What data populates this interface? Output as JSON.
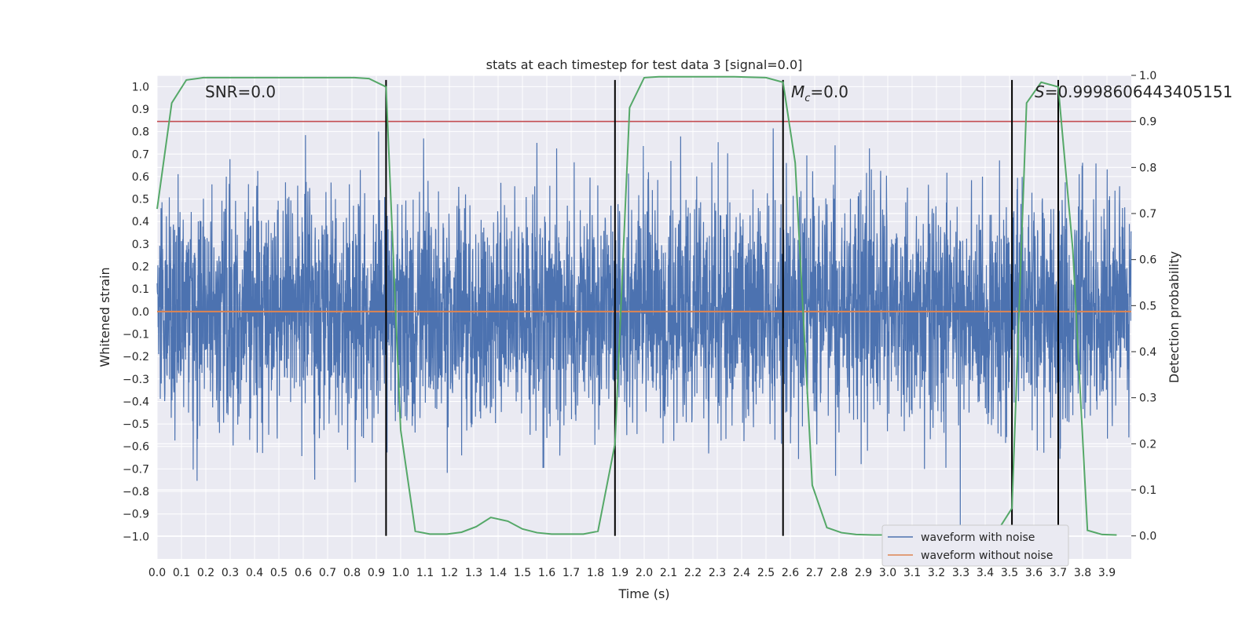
{
  "chart_data": {
    "type": "line",
    "title": "stats at each timestep for test data 3 [signal=0.0]",
    "xlabel": "Time (s)",
    "ylabel": "Whitened strain",
    "y2label": "Detection probability",
    "xlim": [
      0.0,
      4.0
    ],
    "ylim": [
      -1.1,
      1.05
    ],
    "y2lim": [
      -0.05,
      1.0
    ],
    "x_ticks": [
      "0.0",
      "0.1",
      "0.2",
      "0.3",
      "0.4",
      "0.5",
      "0.6",
      "0.7",
      "0.8",
      "0.9",
      "1.0",
      "1.1",
      "1.2",
      "1.3",
      "1.4",
      "1.5",
      "1.6",
      "1.7",
      "1.8",
      "1.9",
      "2.0",
      "2.1",
      "2.2",
      "2.3",
      "2.4",
      "2.5",
      "2.6",
      "2.7",
      "2.8",
      "2.9",
      "3.0",
      "3.1",
      "3.2",
      "3.3",
      "3.4",
      "3.5",
      "3.6",
      "3.7",
      "3.8",
      "3.9"
    ],
    "y_ticks": [
      "1.0",
      "0.9",
      "0.8",
      "0.7",
      "0.6",
      "0.5",
      "0.4",
      "0.3",
      "0.2",
      "0.1",
      "0.0",
      "−0.1",
      "−0.2",
      "−0.3",
      "−0.4",
      "−0.5",
      "−0.6",
      "−0.7",
      "−0.8",
      "−0.9",
      "−1.0"
    ],
    "y2_ticks": [
      "1.0",
      "0.9",
      "0.8",
      "0.7",
      "0.6",
      "0.5",
      "0.4",
      "0.3",
      "0.2",
      "0.1",
      "0.0"
    ],
    "annotations": {
      "snr": "SNR=0.0",
      "mc_symbol": "M",
      "mc_sub": "c",
      "mc_value": "=0.0",
      "s_symbol": "S",
      "s_value": "=0.9998606443405151"
    },
    "threshold_prob": 0.9,
    "vertical_markers": [
      0.94,
      1.88,
      2.57,
      3.51,
      3.7
    ],
    "series": [
      {
        "name": "waveform with noise",
        "color": "#4c72b0",
        "amplitude_max": 0.95,
        "amplitude_min": -0.98
      },
      {
        "name": "waveform without noise",
        "color": "#dd8452",
        "value": 0.0
      },
      {
        "name": "detection probability",
        "color": "#55a868",
        "axis": "right",
        "x": [
          0.0,
          0.06,
          0.12,
          0.19,
          0.25,
          0.31,
          0.37,
          0.44,
          0.5,
          0.56,
          0.62,
          0.69,
          0.75,
          0.81,
          0.87,
          0.94,
          1.0,
          1.06,
          1.12,
          1.19,
          1.25,
          1.31,
          1.37,
          1.44,
          1.5,
          1.56,
          1.62,
          1.69,
          1.75,
          1.81,
          1.88,
          1.94,
          2.0,
          2.06,
          2.12,
          2.19,
          2.25,
          2.31,
          2.37,
          2.44,
          2.5,
          2.57,
          2.62,
          2.69,
          2.75,
          2.81,
          2.87,
          2.94,
          3.0,
          3.06,
          3.12,
          3.19,
          3.25,
          3.31,
          3.37,
          3.44,
          3.51,
          3.57,
          3.63,
          3.7,
          3.76,
          3.82,
          3.88,
          3.94
        ],
        "values": [
          0.71,
          0.94,
          0.99,
          0.995,
          0.995,
          0.995,
          0.995,
          0.995,
          0.995,
          0.995,
          0.995,
          0.995,
          0.995,
          0.995,
          0.993,
          0.975,
          0.23,
          0.01,
          0.004,
          0.004,
          0.008,
          0.02,
          0.04,
          0.032,
          0.015,
          0.007,
          0.004,
          0.004,
          0.004,
          0.01,
          0.2,
          0.93,
          0.995,
          0.997,
          0.997,
          0.997,
          0.997,
          0.997,
          0.997,
          0.996,
          0.995,
          0.985,
          0.81,
          0.11,
          0.018,
          0.007,
          0.003,
          0.002,
          0.002,
          0.002,
          0.002,
          0.002,
          0.002,
          0.002,
          0.002,
          0.002,
          0.06,
          0.94,
          0.985,
          0.975,
          0.62,
          0.012,
          0.003,
          0.002
        ]
      }
    ],
    "legend": [
      "waveform with noise",
      "waveform without noise"
    ],
    "legend_position": "lower-right",
    "grid": true,
    "colors": {
      "background": "#eaeaf2",
      "grid": "#ffffff",
      "threshold": "#c44e52",
      "marker": "#000000"
    }
  }
}
